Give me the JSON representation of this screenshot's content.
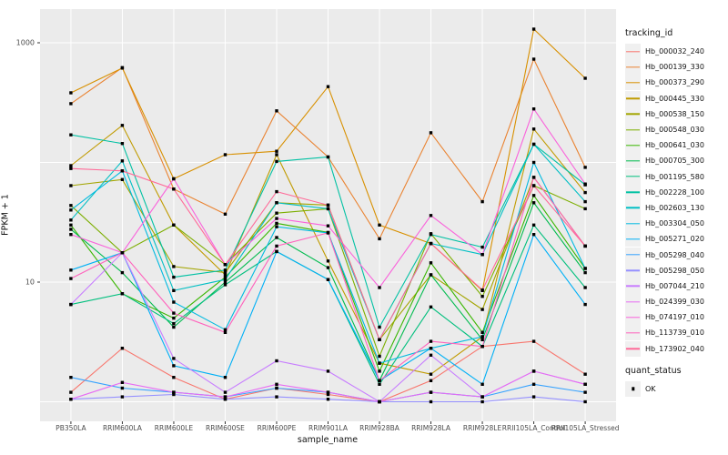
{
  "figure": {
    "ylabel": "FPKM + 1",
    "xlabel": "sample_name",
    "y_tick_labels": [
      "1000",
      "10"
    ],
    "legend_tracking_title": "tracking_id",
    "legend_quant_title": "quant_status",
    "legend_quant_label": "OK"
  },
  "colors": {
    "panel_bg": "#ebebeb",
    "gridline": "#ffffff",
    "point": "#000000",
    "tick_mark": "#333333",
    "axis_text": "#4d4d4d",
    "legend_key_bg": "#f0f0f0"
  },
  "chart_data": {
    "type": "line",
    "title": "",
    "xlabel": "sample_name",
    "ylabel": "FPKM + 1",
    "y_scale": "log10",
    "ylim": [
      0.9,
      1700
    ],
    "y_gridlines": [
      1,
      10,
      100,
      1000
    ],
    "y_labeled_ticks": [
      1000,
      10
    ],
    "grid": "on",
    "legend_position": "right",
    "point_shape": "filled-square",
    "point_color": "#000000",
    "legend": {
      "color_title": "tracking_id",
      "shape_title": "quant_status",
      "shape_entries": [
        "OK"
      ]
    },
    "categories": [
      "PB350LA",
      "RRIM600LA",
      "RRIM600LE",
      "RRIM600SE",
      "RRIM600PE",
      "RRIM901LA",
      "RRIM928BA",
      "RRIM928LA",
      "RRIM928LE",
      "RRII105LA_Control",
      "RRII105LA_Stressed"
    ],
    "series": [
      {
        "name": "Hb_000032_240",
        "color": "#F8766D",
        "values": [
          1.2,
          2.8,
          1.6,
          1.05,
          1.3,
          1.15,
          1.0,
          1.5,
          2.9,
          3.2,
          1.7
        ]
      },
      {
        "name": "Hb_000139_330",
        "color": "#EA8331",
        "values": [
          310,
          620,
          60,
          37,
          270,
          111,
          23,
          177,
          47,
          730,
          91
        ]
      },
      {
        "name": "Hb_000373_290",
        "color": "#D89000",
        "values": [
          382,
          615,
          73,
          116,
          124,
          430,
          30,
          21,
          8.5,
          1300,
          505
        ]
      },
      {
        "name": "Hb_000445_330",
        "color": "#C09B00",
        "values": [
          94,
          204,
          30,
          11.5,
          116,
          15,
          2.1,
          1.7,
          3.5,
          190,
          56
        ]
      },
      {
        "name": "Hb_000538_150",
        "color": "#A3A500",
        "values": [
          64,
          72,
          13.5,
          12,
          46,
          44,
          3.3,
          11.5,
          5.9,
          75,
          20
        ]
      },
      {
        "name": "Hb_000548_030",
        "color": "#7CAE00",
        "values": [
          43.7,
          17.6,
          30,
          14,
          37.7,
          41,
          2.4,
          25.4,
          7.6,
          64,
          41
        ]
      },
      {
        "name": "Hb_000641_030",
        "color": "#39B600",
        "values": [
          30,
          8,
          5,
          11,
          31,
          26,
          1.8,
          14.5,
          3.8,
          53,
          13
        ]
      },
      {
        "name": "Hb_000705_300",
        "color": "#00BB4E",
        "values": [
          27.6,
          12,
          4.2,
          10,
          23.6,
          13.2,
          1.5,
          11.5,
          3.3,
          46,
          12
        ]
      },
      {
        "name": "Hb_001195_580",
        "color": "#00BF7D",
        "values": [
          6.5,
          8,
          4.5,
          9.5,
          18,
          10.5,
          1.4,
          6.2,
          2.9,
          30,
          9
        ]
      },
      {
        "name": "Hb_002228_100",
        "color": "#00C1A3",
        "values": [
          170,
          144,
          11,
          12.6,
          102,
          111,
          4.2,
          25,
          19.6,
          142,
          65
        ]
      },
      {
        "name": "Hb_002603_130",
        "color": "#00BFC4",
        "values": [
          33,
          103,
          8.5,
          10.5,
          46,
          41,
          3.3,
          21,
          17,
          142,
          47
        ]
      },
      {
        "name": "Hb_003304_050",
        "color": "#00BAE0",
        "values": [
          40,
          85,
          6.8,
          4.0,
          29,
          25.8,
          2.1,
          2.8,
          3.5,
          100,
          13
        ]
      },
      {
        "name": "Hb_005271_020",
        "color": "#00B0F6",
        "values": [
          12.6,
          17.6,
          2.0,
          1.6,
          18,
          10.5,
          1.5,
          2.8,
          1.4,
          25,
          6.5
        ]
      },
      {
        "name": "Hb_005298_040",
        "color": "#35A2FF",
        "values": [
          1.6,
          1.3,
          1.2,
          1.1,
          1.3,
          1.2,
          1.0,
          1.2,
          1.1,
          1.4,
          1.2
        ]
      },
      {
        "name": "Hb_005298_050",
        "color": "#9590FF",
        "values": [
          1.05,
          1.1,
          1.15,
          1.05,
          1.1,
          1.05,
          1.0,
          1.0,
          1.0,
          1.1,
          1.0
        ]
      },
      {
        "name": "Hb_007044_210",
        "color": "#C77CFF",
        "values": [
          6.5,
          17.6,
          2.3,
          1.2,
          2.2,
          1.8,
          1.0,
          2.45,
          1.1,
          1.8,
          1.4
        ]
      },
      {
        "name": "Hb_024399_030",
        "color": "#E76BF3",
        "values": [
          1.05,
          1.45,
          1.2,
          1.1,
          1.4,
          1.2,
          1.0,
          1.2,
          1.1,
          1.8,
          1.4
        ]
      },
      {
        "name": "Hb_074197_010",
        "color": "#FA62DB",
        "values": [
          25,
          17.6,
          73,
          14,
          34,
          29.5,
          9,
          36,
          17,
          280,
          66
        ]
      },
      {
        "name": "Hb_113739_010",
        "color": "#FF62BC",
        "values": [
          10.7,
          17.6,
          5.5,
          3.8,
          20,
          25.8,
          1.5,
          3.2,
          2.9,
          75,
          20
        ]
      },
      {
        "name": "Hb_173902_040",
        "color": "#FF6A98",
        "values": [
          89,
          85,
          60,
          14,
          57,
          44,
          3.3,
          21,
          8.6,
          64,
          20
        ]
      }
    ]
  }
}
